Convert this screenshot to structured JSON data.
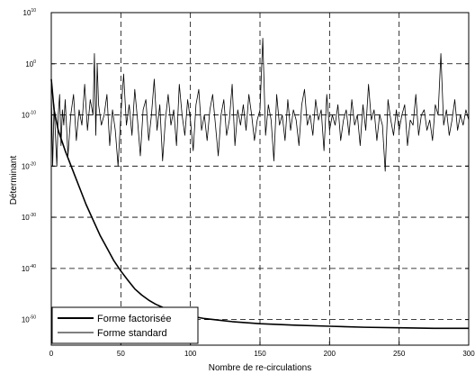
{
  "chart_data": {
    "type": "line",
    "title": "",
    "xlabel": "Nombre de re-circulations",
    "ylabel": "Déterminant",
    "xlim": [
      0,
      300
    ],
    "ylim_exponent": [
      -55,
      10
    ],
    "yscale": "log",
    "grid": true,
    "legend_position": "bottom-left",
    "x_ticks": [
      "0",
      "50",
      "100",
      "150",
      "200",
      "250",
      "300"
    ],
    "y_ticks": [
      {
        "base": "10",
        "exp": "10",
        "value": 10
      },
      {
        "base": "10",
        "exp": "0",
        "value": 0
      },
      {
        "base": "10",
        "exp": "-10",
        "value": -10
      },
      {
        "base": "10",
        "exp": "-20",
        "value": -20
      },
      {
        "base": "10",
        "exp": "-30",
        "value": -30
      },
      {
        "base": "10",
        "exp": "-40",
        "value": -40
      },
      {
        "base": "10",
        "exp": "-50",
        "value": -50
      }
    ],
    "series": [
      {
        "name": "Forme factorisée",
        "x": [
          0,
          2,
          5,
          10,
          15,
          20,
          25,
          30,
          35,
          40,
          45,
          50,
          55,
          60,
          65,
          70,
          75,
          80,
          90,
          100,
          110,
          120,
          130,
          140,
          150,
          175,
          200,
          225,
          250,
          275,
          300
        ],
        "y_log10": [
          -3,
          -9,
          -13,
          -17,
          -20.5,
          -24,
          -27.5,
          -30.5,
          -33.5,
          -36,
          -38.5,
          -40.5,
          -42.3,
          -44,
          -45.2,
          -46.2,
          -47,
          -47.6,
          -48.6,
          -49.3,
          -49.8,
          -50.1,
          -50.4,
          -50.6,
          -50.8,
          -51.1,
          -51.3,
          -51.5,
          -51.6,
          -51.7,
          -51.7
        ]
      },
      {
        "name": "Forme standard",
        "x": [
          0,
          1,
          2,
          3,
          4,
          5,
          6,
          7,
          8,
          9,
          10,
          12,
          14,
          16,
          18,
          20,
          22,
          24,
          26,
          28,
          30,
          31,
          32,
          33,
          34,
          36,
          38,
          40,
          42,
          44,
          46,
          48,
          50,
          52,
          54,
          56,
          58,
          60,
          62,
          64,
          66,
          68,
          70,
          72,
          74,
          76,
          78,
          80,
          82,
          84,
          86,
          88,
          90,
          92,
          94,
          96,
          98,
          100,
          102,
          104,
          106,
          108,
          110,
          112,
          114,
          116,
          118,
          120,
          122,
          124,
          126,
          128,
          130,
          132,
          134,
          136,
          138,
          140,
          142,
          144,
          146,
          148,
          150,
          152,
          154,
          156,
          158,
          160,
          162,
          164,
          166,
          168,
          170,
          172,
          174,
          176,
          178,
          180,
          182,
          184,
          186,
          188,
          190,
          192,
          194,
          196,
          198,
          200,
          202,
          204,
          206,
          208,
          210,
          212,
          214,
          216,
          218,
          220,
          222,
          224,
          226,
          228,
          230,
          232,
          234,
          236,
          238,
          240,
          242,
          244,
          246,
          248,
          250,
          252,
          254,
          256,
          258,
          260,
          262,
          264,
          266,
          268,
          270,
          272,
          274,
          276,
          278,
          280,
          282,
          284,
          286,
          288,
          290,
          292,
          294,
          296,
          298,
          300
        ],
        "y_log10": [
          -5,
          -20,
          -8,
          -14,
          -20,
          -10,
          -6,
          -16,
          -9,
          -12,
          -7,
          -18,
          -10,
          -6,
          -15,
          -9,
          -12,
          -4,
          -13,
          -7,
          -10,
          2,
          -14,
          0,
          -8,
          -12,
          -10,
          -6,
          -16,
          -9,
          -13,
          -20,
          -10,
          -2,
          -12,
          -8,
          -14,
          -5,
          -11,
          -18,
          -9,
          -7,
          -15,
          -10,
          -3,
          -13,
          -8,
          -19,
          -11,
          -6,
          -12,
          -9,
          -16,
          -4,
          -10,
          -14,
          -7,
          -11,
          -17,
          -8,
          -5,
          -13,
          -10,
          -15,
          -9,
          -6,
          -12,
          -18,
          -10,
          -7,
          -14,
          -11,
          -4,
          -16,
          -9,
          -12,
          -8,
          -13,
          -6,
          -10,
          -15,
          -11,
          -9,
          5,
          -14,
          -8,
          -11,
          -19,
          -6,
          -12,
          -10,
          -15,
          -7,
          -13,
          -9,
          -11,
          -16,
          -8,
          -5,
          -12,
          -10,
          -14,
          -7,
          -11,
          -9,
          -17,
          -6,
          -13,
          -10,
          -12,
          -8,
          -15,
          -11,
          -9,
          -14,
          -7,
          -12,
          -10,
          -16,
          -8,
          -13,
          -4,
          -11,
          -9,
          -15,
          -10,
          -12,
          -21,
          -7,
          -11,
          -14,
          -9,
          -13,
          -10,
          -8,
          -16,
          -11,
          -12,
          -6,
          -14,
          -10,
          -9,
          -13,
          -11,
          -15,
          -8,
          -10,
          2,
          -12,
          -9,
          -14,
          -11,
          -7,
          -13,
          -10,
          -12,
          -9,
          -11
        ]
      }
    ]
  }
}
